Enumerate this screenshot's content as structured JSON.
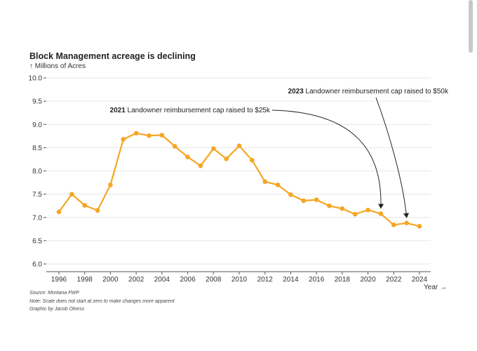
{
  "chart_data": {
    "type": "line",
    "title": "Block Management acreage is declining",
    "ylabel": "↑ Millions of Acres",
    "xlabel": "Year →",
    "ylim": [
      6.0,
      10.0
    ],
    "yticks": [
      "10.0",
      "9.5",
      "9.0",
      "8.5",
      "8.0",
      "7.5",
      "7.0",
      "6.5",
      "6.0"
    ],
    "xticks": [
      "1996",
      "1998",
      "2000",
      "2002",
      "2004",
      "2006",
      "2008",
      "2010",
      "2012",
      "2014",
      "2016",
      "2018",
      "2020",
      "2022",
      "2024"
    ],
    "grid": true,
    "series": [
      {
        "name": "Block Management acreage",
        "color": "#f5a623",
        "x": [
          1996,
          1997,
          1998,
          1999,
          2000,
          2001,
          2002,
          2003,
          2004,
          2005,
          2006,
          2007,
          2008,
          2009,
          2010,
          2011,
          2012,
          2013,
          2014,
          2015,
          2016,
          2017,
          2018,
          2019,
          2020,
          2021,
          2022,
          2023,
          2024
        ],
        "values": [
          7.12,
          7.5,
          7.26,
          7.15,
          7.7,
          8.68,
          8.81,
          8.76,
          8.77,
          8.53,
          8.3,
          8.11,
          8.48,
          8.26,
          8.54,
          8.23,
          7.77,
          7.7,
          7.49,
          7.36,
          7.38,
          7.25,
          7.19,
          7.07,
          7.16,
          7.08,
          6.84,
          6.88,
          6.81
        ]
      }
    ],
    "annotations": [
      {
        "year_bold": "2021",
        "text": " Landowner reimbursement cap raised to $25k",
        "target_x": 2021,
        "target_y": 7.08
      },
      {
        "year_bold": "2023",
        "text": " Landowner reimbursement cap raised to $50k",
        "target_x": 2023,
        "target_y": 6.88
      }
    ]
  },
  "footer": {
    "source": "Source: Montana FWP",
    "note": "Note: Scale does not start at zero to make changes more apparent",
    "credit": "Graphic by Jacob Olness"
  }
}
